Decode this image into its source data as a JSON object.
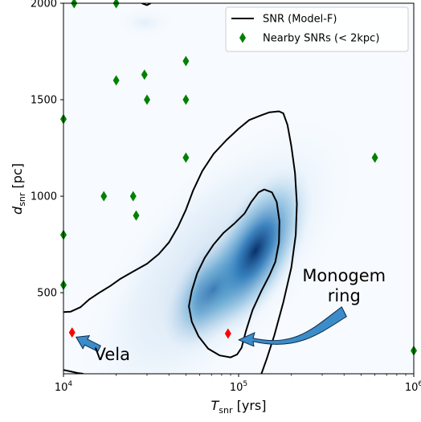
{
  "chart_data": {
    "type": "scatter",
    "title": "",
    "xlabel_main": "T",
    "xlabel_sub": "snr",
    "xlabel_unit": " [yrs]",
    "ylabel_main": "d",
    "ylabel_sub": "snr",
    "ylabel_unit": " [pc]",
    "x_scale": "log",
    "xlim": [
      10000,
      1000000
    ],
    "ylim": [
      80,
      2000
    ],
    "x_ticks": [
      {
        "value": 10000,
        "base": "10",
        "exp": "4"
      },
      {
        "value": 100000,
        "base": "10",
        "exp": "5"
      },
      {
        "value": 1000000,
        "base": "10",
        "exp": "6"
      }
    ],
    "y_ticks": [
      {
        "value": 500,
        "label": "500"
      },
      {
        "value": 1000,
        "label": "1000"
      },
      {
        "value": 1500,
        "label": "1500"
      },
      {
        "value": 2000,
        "label": "2000"
      }
    ],
    "grid": false,
    "legend_position": "top-right",
    "legend": [
      {
        "label": "SNR (Model-F)",
        "kind": "line",
        "color": "#000000"
      },
      {
        "label": "Nearby SNRs (< 2kpc)",
        "kind": "diamond",
        "color": "#008000"
      }
    ],
    "density": {
      "colormap": "Blues",
      "peaks": [
        {
          "x": 130000,
          "y": 720,
          "weight": 1.0
        },
        {
          "x": 75000,
          "y": 520,
          "weight": 0.85
        }
      ]
    },
    "contours": [
      {
        "name": "SNR (Model-F)",
        "level": "outer",
        "points": [
          [
            10000,
            400
          ],
          [
            11000,
            402
          ],
          [
            12500,
            425
          ],
          [
            14000,
            465
          ],
          [
            16000,
            500
          ],
          [
            18500,
            535
          ],
          [
            21000,
            570
          ],
          [
            25000,
            610
          ],
          [
            30000,
            650
          ],
          [
            35000,
            700
          ],
          [
            40000,
            760
          ],
          [
            45000,
            840
          ],
          [
            50000,
            930
          ],
          [
            55000,
            1030
          ],
          [
            62000,
            1130
          ],
          [
            72000,
            1220
          ],
          [
            85000,
            1290
          ],
          [
            100000,
            1350
          ],
          [
            115000,
            1395
          ],
          [
            135000,
            1420
          ],
          [
            150000,
            1435
          ],
          [
            170000,
            1440
          ],
          [
            180000,
            1430
          ],
          [
            190000,
            1370
          ],
          [
            200000,
            1260
          ],
          [
            210000,
            1120
          ],
          [
            215000,
            960
          ],
          [
            212000,
            800
          ],
          [
            200000,
            630
          ],
          [
            180000,
            450
          ],
          [
            160000,
            280
          ],
          [
            145000,
            160
          ],
          [
            135000,
            80
          ]
        ]
      },
      {
        "name": "SNR (Model-F)",
        "level": "outer-lower",
        "points": [
          [
            10000,
            100
          ],
          [
            11000,
            92
          ],
          [
            12000,
            84
          ],
          [
            13000,
            80
          ]
        ]
      },
      {
        "name": "SNR (Model-F)",
        "level": "outer-top",
        "points": [
          [
            28000,
            2000
          ],
          [
            30000,
            1990
          ],
          [
            31500,
            2000
          ]
        ]
      },
      {
        "name": "SNR (Model-F)",
        "level": "inner",
        "closed": true,
        "points": [
          [
            140000,
            1035
          ],
          [
            130000,
            1020
          ],
          [
            118000,
            970
          ],
          [
            108000,
            910
          ],
          [
            95000,
            860
          ],
          [
            82000,
            810
          ],
          [
            72000,
            750
          ],
          [
            64000,
            680
          ],
          [
            58000,
            600
          ],
          [
            54000,
            510
          ],
          [
            52000,
            430
          ],
          [
            54000,
            350
          ],
          [
            59000,
            275
          ],
          [
            67000,
            210
          ],
          [
            78000,
            175
          ],
          [
            90000,
            165
          ],
          [
            98000,
            180
          ],
          [
            104000,
            215
          ],
          [
            110000,
            300
          ],
          [
            120000,
            410
          ],
          [
            135000,
            510
          ],
          [
            150000,
            590
          ],
          [
            162000,
            660
          ],
          [
            170000,
            760
          ],
          [
            171000,
            870
          ],
          [
            165000,
            970
          ],
          [
            155000,
            1020
          ]
        ]
      }
    ],
    "series": [
      {
        "name": "Nearby SNRs (< 2kpc)",
        "color": "#008000",
        "marker": "diamond",
        "points": [
          [
            10000,
            1400
          ],
          [
            10000,
            800
          ],
          [
            10000,
            540
          ],
          [
            11500,
            2000
          ],
          [
            20000,
            2000
          ],
          [
            20000,
            1600
          ],
          [
            29000,
            1630
          ],
          [
            30000,
            1500
          ],
          [
            17000,
            1000
          ],
          [
            25000,
            1000
          ],
          [
            26000,
            900
          ],
          [
            50000,
            1700
          ],
          [
            50000,
            1500
          ],
          [
            50000,
            1200
          ],
          [
            600000,
            1200
          ],
          [
            1000000,
            200
          ]
        ]
      },
      {
        "name": "",
        "color": "#ff0000",
        "marker": "diamond",
        "points": [
          [
            11200,
            294
          ],
          [
            87000,
            288
          ]
        ]
      }
    ],
    "annotations": [
      {
        "text": "Vela",
        "lines": [
          "Vela"
        ],
        "target": [
          11800,
          270
        ],
        "tail": [
          16000,
          210
        ],
        "label_at": [
          19000,
          150
        ]
      },
      {
        "text": "Monogem ring",
        "lines": [
          "Monogem",
          "ring"
        ],
        "target": [
          100000,
          260
        ],
        "tail": [
          400000,
          385
        ],
        "label_at": [
          400000,
          560
        ]
      }
    ]
  }
}
